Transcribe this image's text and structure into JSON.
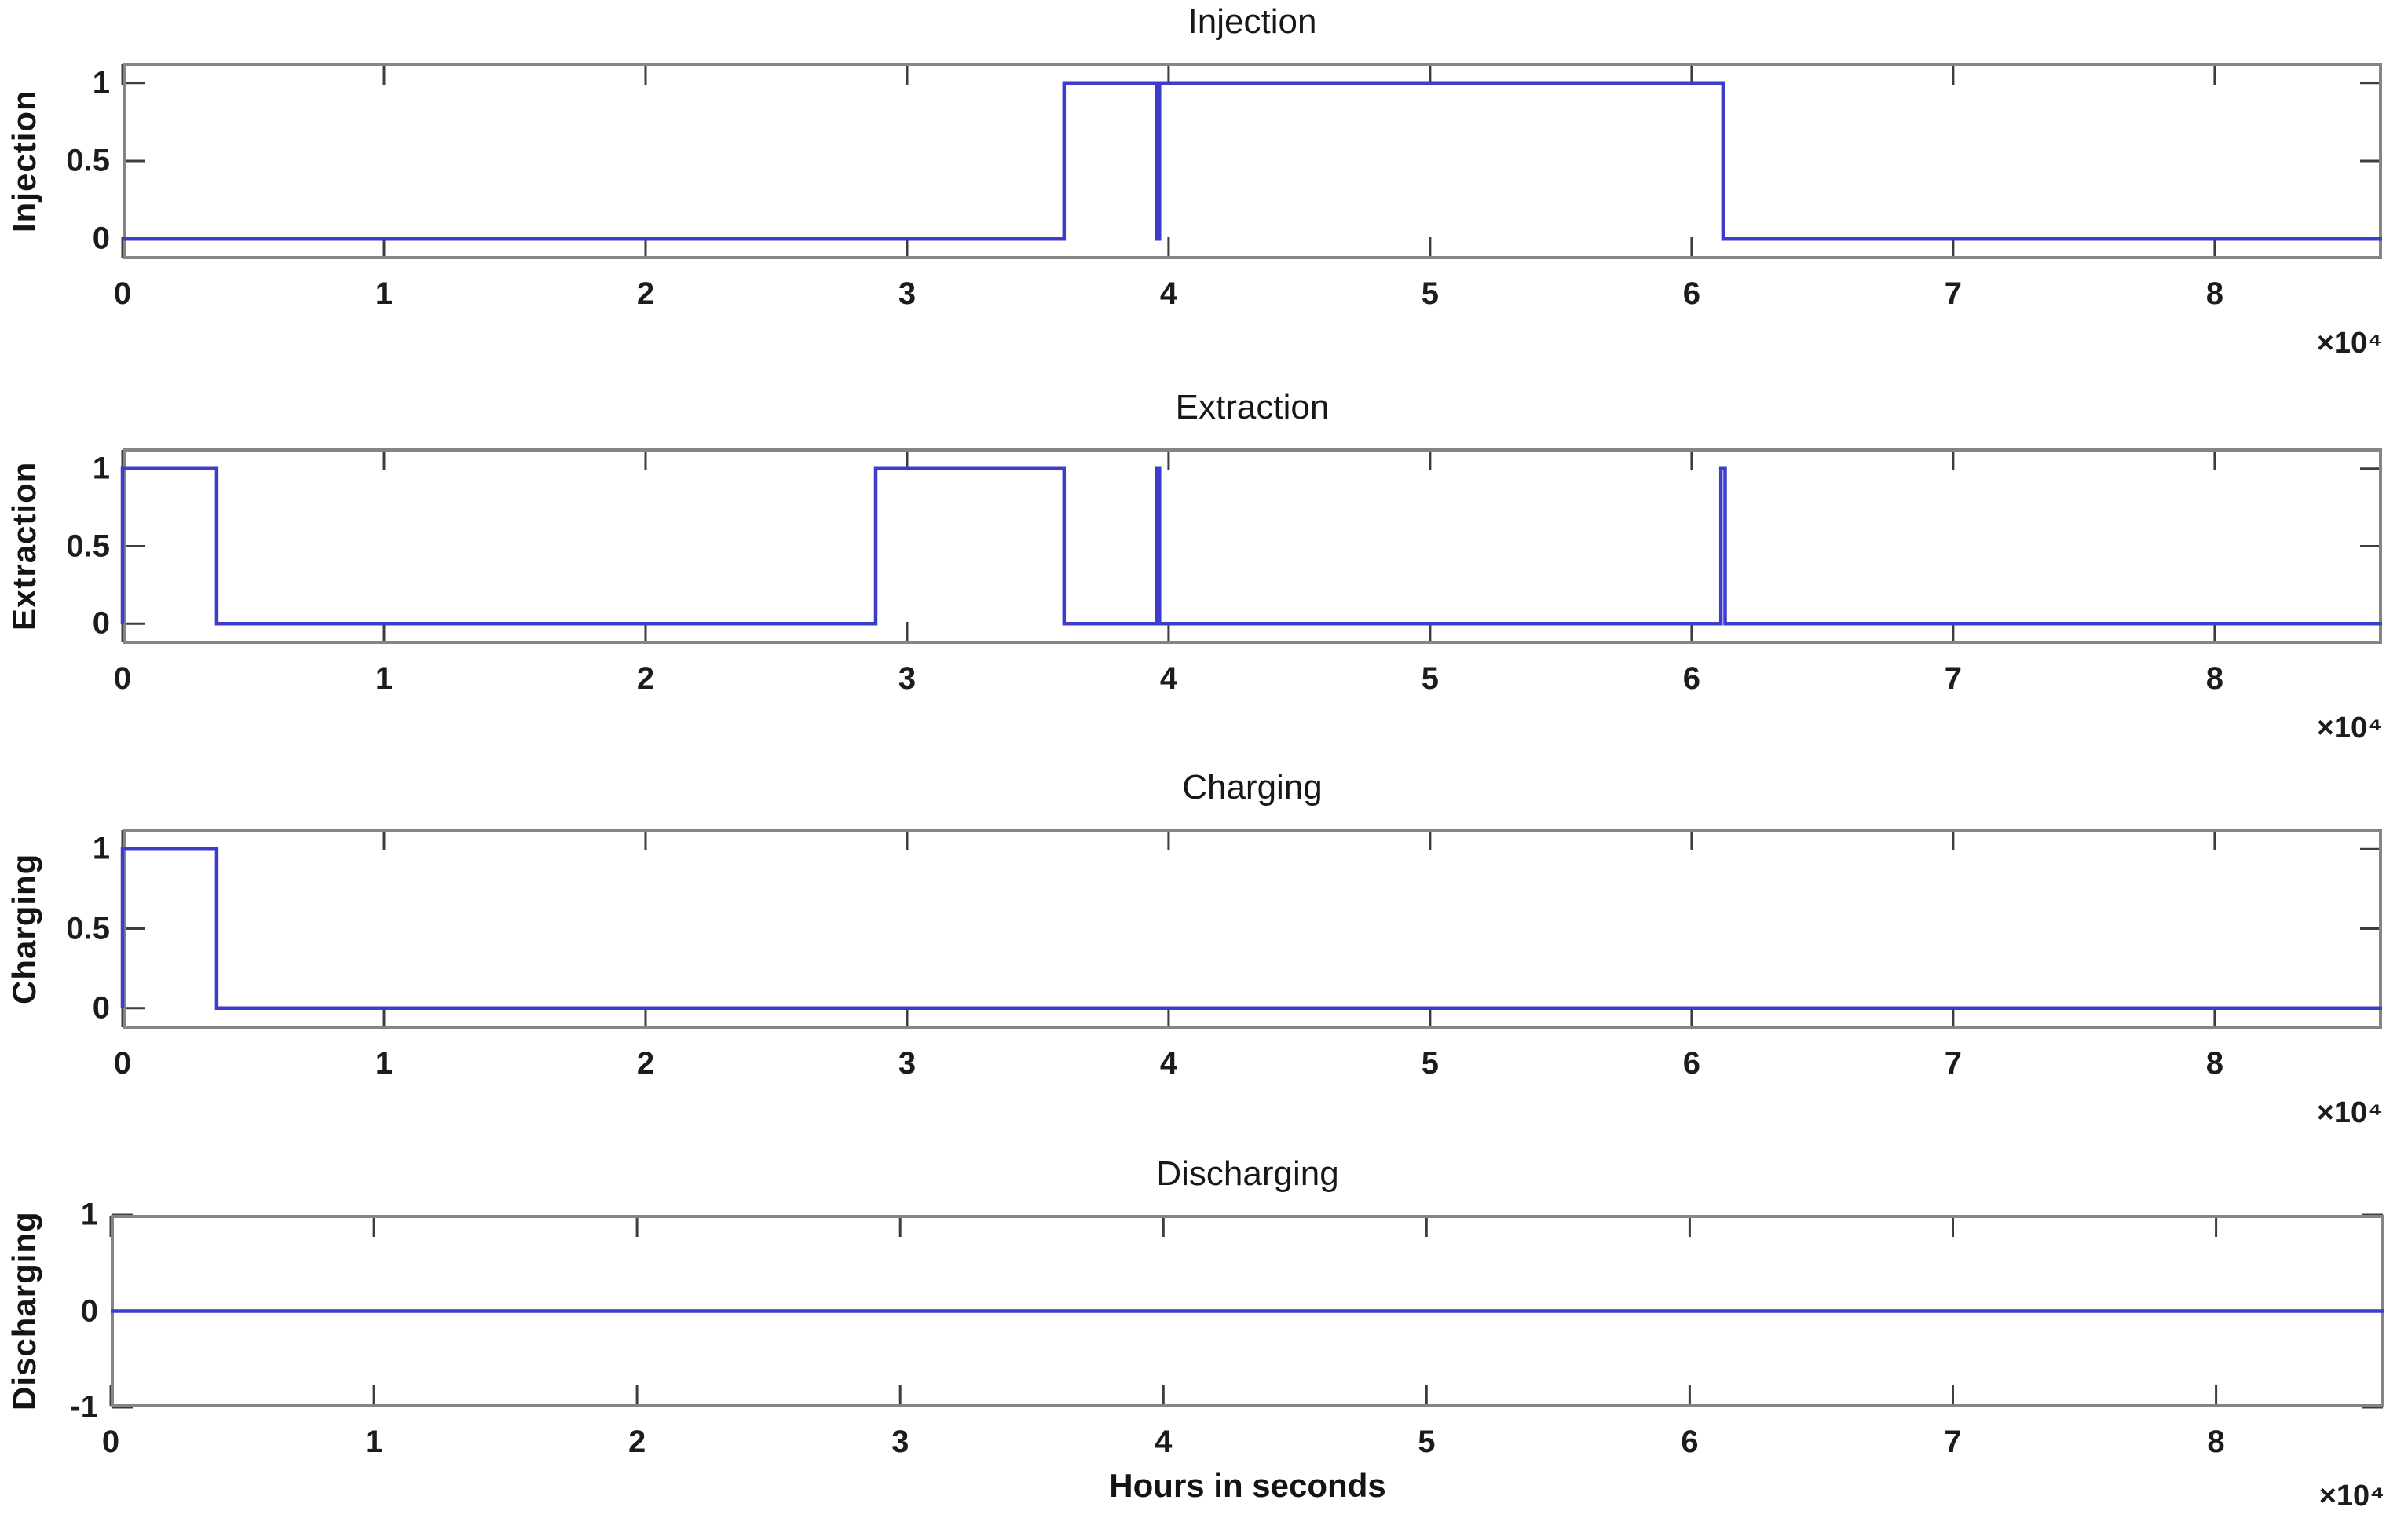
{
  "figure": {
    "xlabel": "Hours in seconds",
    "background_color": "#ffffff",
    "frame_color": "#858585",
    "tick_mark_color": "#3d3d3d",
    "text_color": "#1c1c1c"
  },
  "chart_data": [
    {
      "type": "line",
      "subtype": "binary-step",
      "title": "Injection",
      "ylabel": "Injection",
      "x_range": [
        0,
        86400
      ],
      "y_range": [
        -0.13,
        1.13
      ],
      "x_tick_values": [
        0,
        10000,
        20000,
        30000,
        40000,
        50000,
        60000,
        70000,
        80000
      ],
      "x_tick_labels": [
        "0",
        "1",
        "2",
        "3",
        "4",
        "5",
        "6",
        "7",
        "8"
      ],
      "x_scale_label": "×10⁴",
      "y_tick_values": [
        0,
        0.5,
        1
      ],
      "y_tick_labels": [
        "0",
        "0.5",
        "1"
      ],
      "grid": false,
      "line_color": "#3d3dcc",
      "points": [
        [
          0,
          0
        ],
        [
          36000,
          0
        ],
        [
          36000,
          1
        ],
        [
          39550,
          1
        ],
        [
          39550,
          0
        ],
        [
          39650,
          0
        ],
        [
          39650,
          1
        ],
        [
          61200,
          1
        ],
        [
          61200,
          0
        ],
        [
          86400,
          0
        ]
      ]
    },
    {
      "type": "line",
      "subtype": "binary-step",
      "title": "Extraction",
      "ylabel": "Extraction",
      "x_range": [
        0,
        86400
      ],
      "y_range": [
        -0.13,
        1.13
      ],
      "x_tick_values": [
        0,
        10000,
        20000,
        30000,
        40000,
        50000,
        60000,
        70000,
        80000
      ],
      "x_tick_labels": [
        "0",
        "1",
        "2",
        "3",
        "4",
        "5",
        "6",
        "7",
        "8"
      ],
      "x_scale_label": "×10⁴",
      "y_tick_values": [
        0,
        0.5,
        1
      ],
      "y_tick_labels": [
        "0",
        "0.5",
        "1"
      ],
      "grid": false,
      "line_color": "#3d3dcc",
      "points": [
        [
          0,
          0
        ],
        [
          0,
          1
        ],
        [
          3600,
          1
        ],
        [
          3600,
          0
        ],
        [
          28800,
          0
        ],
        [
          28800,
          1
        ],
        [
          36000,
          1
        ],
        [
          36000,
          0
        ],
        [
          39550,
          0
        ],
        [
          39550,
          1
        ],
        [
          39650,
          1
        ],
        [
          39650,
          0
        ],
        [
          61120,
          0
        ],
        [
          61120,
          1
        ],
        [
          61280,
          1
        ],
        [
          61280,
          0
        ],
        [
          86400,
          0
        ]
      ]
    },
    {
      "type": "line",
      "subtype": "binary-step",
      "title": "Charging",
      "ylabel": "Charging",
      "x_range": [
        0,
        86400
      ],
      "y_range": [
        -0.13,
        1.13
      ],
      "x_tick_values": [
        0,
        10000,
        20000,
        30000,
        40000,
        50000,
        60000,
        70000,
        80000
      ],
      "x_tick_labels": [
        "0",
        "1",
        "2",
        "3",
        "4",
        "5",
        "6",
        "7",
        "8"
      ],
      "x_scale_label": "×10⁴",
      "y_tick_values": [
        0,
        0.5,
        1
      ],
      "y_tick_labels": [
        "0",
        "0.5",
        "1"
      ],
      "grid": false,
      "line_color": "#3d3dcc",
      "points": [
        [
          0,
          0
        ],
        [
          0,
          1
        ],
        [
          3600,
          1
        ],
        [
          3600,
          0
        ],
        [
          86400,
          0
        ]
      ]
    },
    {
      "type": "line",
      "subtype": "binary-step",
      "title": "Discharging",
      "ylabel": "Discharging",
      "x_range": [
        0,
        86400
      ],
      "y_range": [
        -1,
        1
      ],
      "x_tick_values": [
        0,
        10000,
        20000,
        30000,
        40000,
        50000,
        60000,
        70000,
        80000
      ],
      "x_tick_labels": [
        "0",
        "1",
        "2",
        "3",
        "4",
        "5",
        "6",
        "7",
        "8"
      ],
      "x_scale_label": "×10⁴",
      "y_tick_values": [
        -1,
        0,
        1
      ],
      "y_tick_labels": [
        "-1",
        "0",
        "1"
      ],
      "grid": false,
      "line_color": "#3d3dcc",
      "points": [
        [
          0,
          0
        ],
        [
          86400,
          0
        ]
      ]
    }
  ]
}
